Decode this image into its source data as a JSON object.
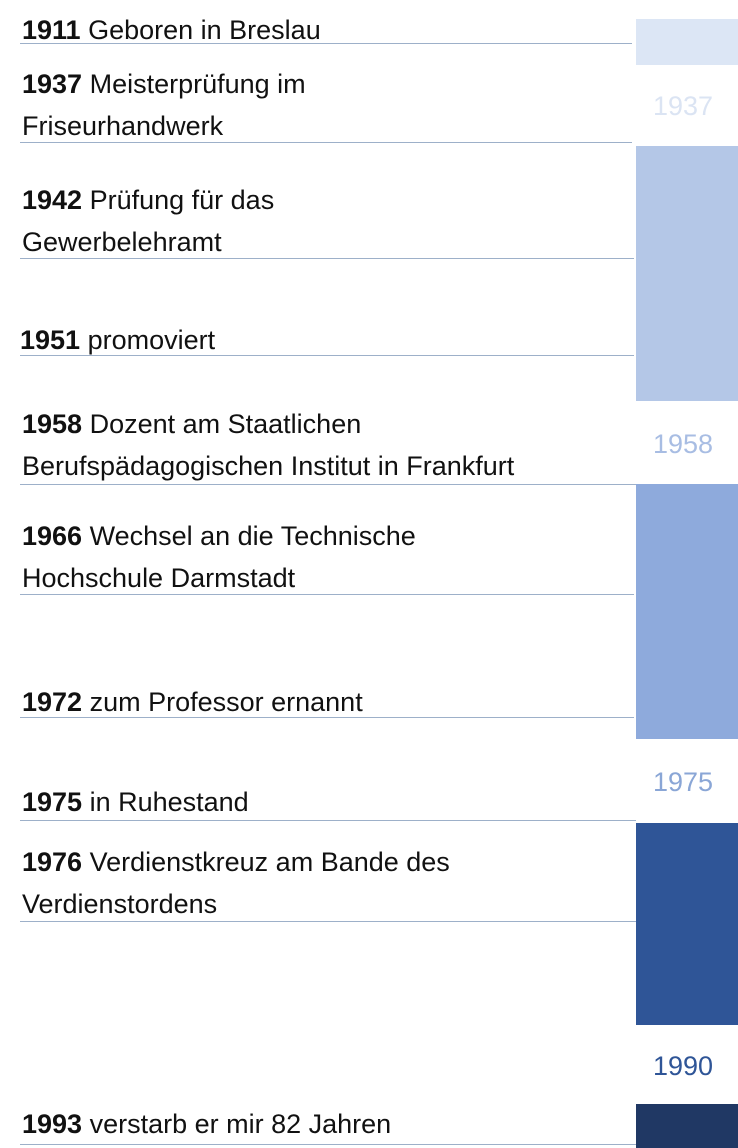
{
  "events": [
    {
      "year": "1911",
      "text": " Geboren in Breslau"
    },
    {
      "year": "1937",
      "text": " Meisterprüfung im",
      "text2": "Friseurhandwerk"
    },
    {
      "year": "1942",
      "text": " Prüfung  für das",
      "text2": "Gewerbelehramt"
    },
    {
      "year": "1951",
      "text": " promoviert"
    },
    {
      "year": "1958",
      "text": " Dozent  am Staatlichen",
      "text2": "Berufspädagogischen Institut in Frankfurt"
    },
    {
      "year": "1966",
      "text": " Wechsel an die Technische",
      "text2": "Hochschule Darmstadt"
    },
    {
      "year": "1972",
      "text": " zum Professor ernannt"
    },
    {
      "year": "1975",
      "text": " in Ruhestand"
    },
    {
      "year": "1976",
      "text": " Verdienstkreuz am Bande des",
      "text2": "Verdienstordens"
    },
    {
      "year": "1993",
      "text": " verstarb er mir 82 Jahren"
    }
  ],
  "markers": [
    "1937",
    "1958",
    "1975",
    "1990"
  ],
  "colors": {
    "bar1": "#dce6f5",
    "bar2": "#b4c7e7",
    "bar3": "#8eaadc",
    "bar4": "#2f5597",
    "bar5": "#203864",
    "marker1": "#dbe4f3",
    "marker2": "#a8bde3",
    "marker3": "#8aa6d6",
    "marker4": "#2f5597",
    "rule": "#9db0c9"
  }
}
